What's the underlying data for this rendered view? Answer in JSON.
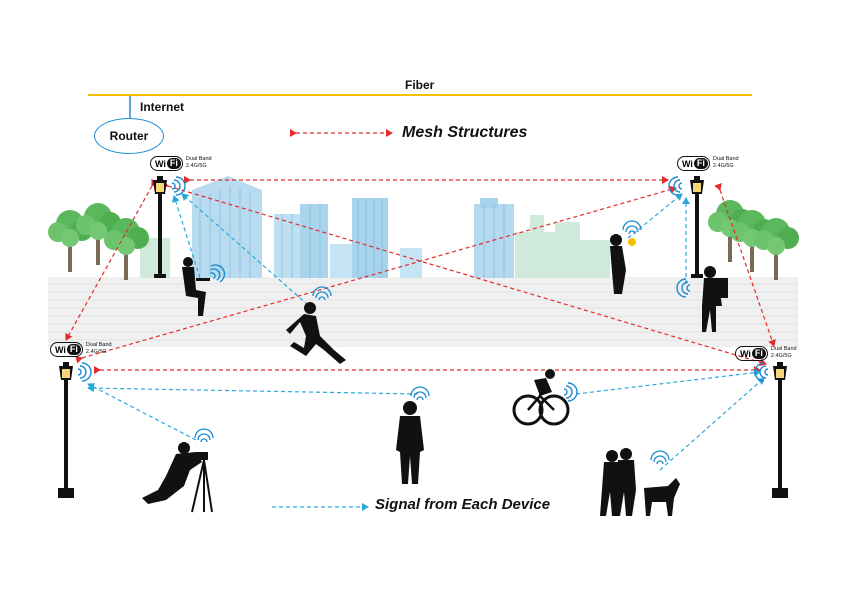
{
  "top": {
    "fiber_label": "Fiber",
    "internet_label": "Internet",
    "router_label": "Router"
  },
  "legend": {
    "mesh_label": "Mesh Structures",
    "signal_label": "Signal from Each Device"
  },
  "wifi_badge": {
    "logo_left": "Wi",
    "logo_right": "Fi",
    "band_line1": "Dual Band",
    "band_line2": "2.4G/5G"
  },
  "colors": {
    "fiber": "#f2c200",
    "router_ring": "#1c8bd1",
    "mesh_arrow": "#e52a2a",
    "signal_arrow": "#2aa8dd",
    "wifi_wave": "#1c8bd1",
    "silhouette": "#111111",
    "tree": "#5cb85c",
    "building": "#9fd0ea"
  }
}
